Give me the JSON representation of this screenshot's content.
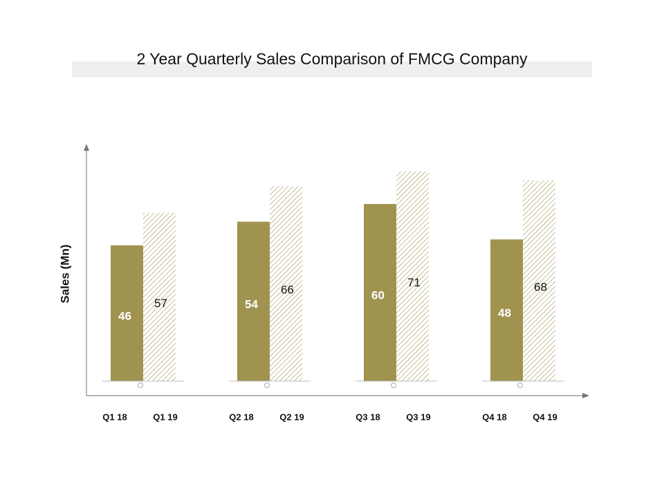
{
  "chart_data": {
    "type": "bar",
    "title": "2 Year Quarterly Sales Comparison of FMCG Company",
    "y_label": "Sales (Mn)",
    "series": [
      {
        "color": "#a09350",
        "pattern": "solid",
        "x_labels": [
          "Q1 18",
          "Q2 18",
          "Q3 18",
          "Q4 18"
        ],
        "values": [
          46,
          54,
          60,
          48
        ]
      },
      {
        "color": "#a09350",
        "pattern": "hatch",
        "x_labels": [
          "Q1 19",
          "Q2 19",
          "Q3 19",
          "Q4 19"
        ],
        "values": [
          57,
          66,
          71,
          68
        ]
      }
    ]
  }
}
